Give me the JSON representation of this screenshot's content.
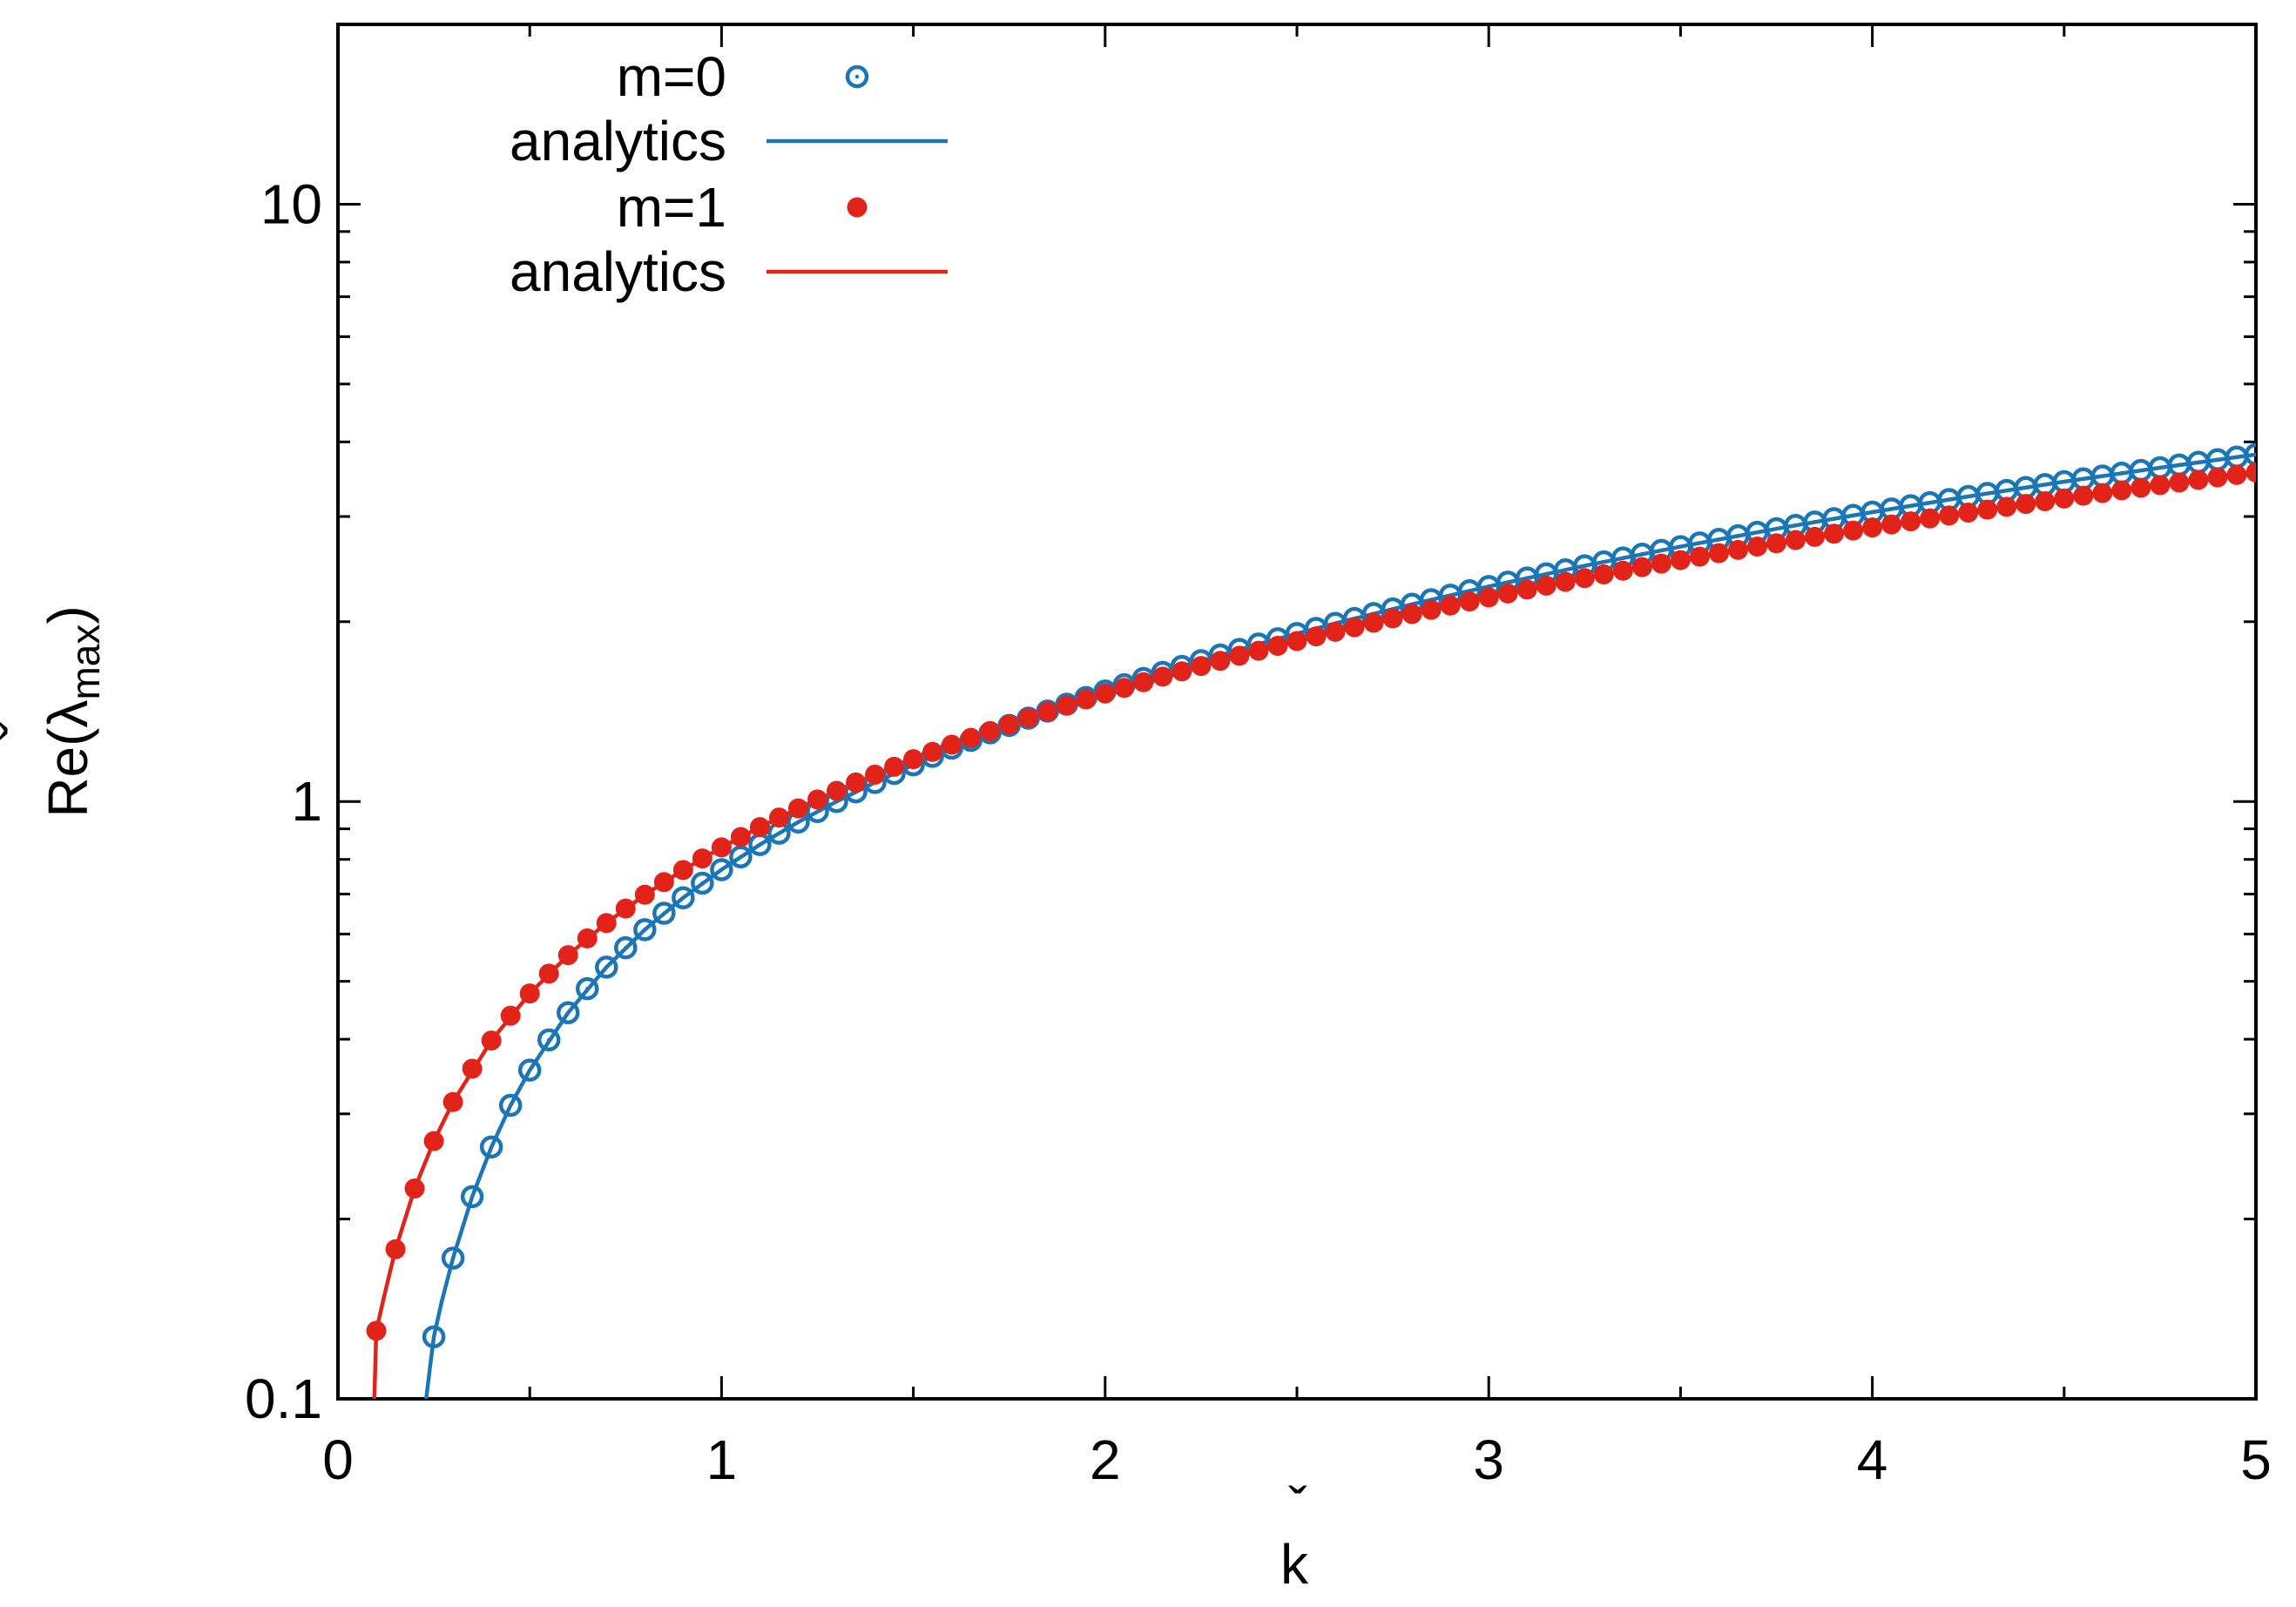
{
  "colors": {
    "m0": "#1a76b6",
    "m1": "#e2231a",
    "axis": "#000000",
    "background": "#ffffff"
  },
  "chart_data": {
    "type": "scatter",
    "title": "",
    "xlabel": "k",
    "xlabel_accent": "ˇ",
    "ylabel": {
      "prefix": "Re(",
      "symbol": "λ",
      "symbol_accent": "ˇ",
      "subscript": "max",
      "suffix": ")"
    },
    "xlim": [
      0,
      5
    ],
    "ylim": [
      0.1,
      20
    ],
    "yscale": "log",
    "grid": false,
    "legend_position": "top-left",
    "x_ticks": [
      {
        "value": 0,
        "label": "0"
      },
      {
        "value": 1,
        "label": "1"
      },
      {
        "value": 2,
        "label": "2"
      },
      {
        "value": 3,
        "label": "3"
      },
      {
        "value": 4,
        "label": "4"
      },
      {
        "value": 5,
        "label": "5"
      }
    ],
    "y_ticks": [
      {
        "value": 0.1,
        "label": "0.1"
      },
      {
        "value": 1,
        "label": "1"
      },
      {
        "value": 10,
        "label": "10"
      }
    ],
    "x_minor_ticks": [
      0.5,
      1.5,
      2.5,
      3.5,
      4.5
    ],
    "y_minor_ticks": [
      0.2,
      0.3,
      0.4,
      0.5,
      0.6,
      0.7,
      0.8,
      0.9,
      2,
      3,
      4,
      5,
      6,
      7,
      8,
      9,
      20
    ],
    "series": [
      {
        "name": "m=0",
        "kind": "points",
        "marker": "open-circle",
        "color": "#1a76b6",
        "x": [
          0.25,
          0.3,
          0.35,
          0.4,
          0.45,
          0.5,
          0.55,
          0.6,
          0.65,
          0.7,
          0.75,
          0.8,
          0.85,
          0.9,
          0.95,
          1.0,
          1.05,
          1.1,
          1.15,
          1.2,
          1.25,
          1.3,
          1.35,
          1.4,
          1.45,
          1.5,
          1.55,
          1.6,
          1.65,
          1.7,
          1.75,
          1.8,
          1.85,
          1.9,
          1.95,
          2.0,
          2.05,
          2.1,
          2.15,
          2.2,
          2.25,
          2.3,
          2.35,
          2.4,
          2.45,
          2.5,
          2.55,
          2.6,
          2.65,
          2.7,
          2.75,
          2.8,
          2.85,
          2.9,
          2.95,
          3.0,
          3.05,
          3.1,
          3.15,
          3.2,
          3.25,
          3.3,
          3.35,
          3.4,
          3.45,
          3.5,
          3.55,
          3.6,
          3.65,
          3.7,
          3.75,
          3.8,
          3.85,
          3.9,
          3.95,
          4.0,
          4.05,
          4.1,
          4.15,
          4.2,
          4.25,
          4.3,
          4.35,
          4.4,
          4.45,
          4.5,
          4.55,
          4.6,
          4.65,
          4.7,
          4.75,
          4.8,
          4.85,
          4.9,
          4.95,
          5.0
        ],
        "y": [
          0.127,
          0.172,
          0.218,
          0.264,
          0.31,
          0.355,
          0.399,
          0.443,
          0.486,
          0.528,
          0.569,
          0.61,
          0.65,
          0.69,
          0.73,
          0.769,
          0.808,
          0.847,
          0.885,
          0.924,
          0.962,
          1.0,
          1.038,
          1.076,
          1.114,
          1.152,
          1.19,
          1.228,
          1.266,
          1.303,
          1.341,
          1.379,
          1.417,
          1.455,
          1.493,
          1.531,
          1.569,
          1.607,
          1.645,
          1.683,
          1.721,
          1.759,
          1.797,
          1.835,
          1.873,
          1.911,
          1.949,
          1.987,
          2.025,
          2.063,
          2.101,
          2.139,
          2.177,
          2.215,
          2.253,
          2.291,
          2.329,
          2.367,
          2.405,
          2.443,
          2.481,
          2.519,
          2.557,
          2.595,
          2.633,
          2.671,
          2.709,
          2.747,
          2.785,
          2.823,
          2.861,
          2.899,
          2.937,
          2.975,
          3.013,
          3.051,
          3.089,
          3.127,
          3.165,
          3.203,
          3.241,
          3.279,
          3.317,
          3.355,
          3.393,
          3.431,
          3.469,
          3.507,
          3.545,
          3.583,
          3.621,
          3.659,
          3.697,
          3.735,
          3.773,
          3.811
        ]
      },
      {
        "name": "analytics",
        "kind": "line",
        "color": "#1a76b6",
        "x": [
          0.23,
          0.24,
          0.25,
          0.27,
          0.3,
          0.35,
          0.4,
          0.45,
          0.5,
          0.6,
          0.7,
          0.8,
          0.9,
          1.0,
          1.1,
          1.2,
          1.3,
          1.4,
          1.5,
          1.6,
          1.7,
          1.8,
          1.9,
          2.0,
          2.2,
          2.4,
          2.6,
          2.8,
          3.0,
          3.25,
          3.5,
          3.75,
          4.0,
          4.25,
          4.5,
          4.75,
          5.0
        ],
        "y": [
          0.1,
          0.113,
          0.127,
          0.145,
          0.172,
          0.218,
          0.264,
          0.31,
          0.355,
          0.443,
          0.528,
          0.61,
          0.69,
          0.769,
          0.847,
          0.924,
          1.0,
          1.076,
          1.152,
          1.228,
          1.303,
          1.379,
          1.455,
          1.531,
          1.683,
          1.835,
          1.987,
          2.139,
          2.291,
          2.481,
          2.671,
          2.861,
          3.051,
          3.241,
          3.431,
          3.621,
          3.811
        ]
      },
      {
        "name": "m=1",
        "kind": "points",
        "marker": "filled-circle",
        "color": "#e2231a",
        "x": [
          0.1,
          0.15,
          0.2,
          0.25,
          0.3,
          0.35,
          0.4,
          0.45,
          0.5,
          0.55,
          0.6,
          0.65,
          0.7,
          0.75,
          0.8,
          0.85,
          0.9,
          0.95,
          1.0,
          1.05,
          1.1,
          1.15,
          1.2,
          1.25,
          1.3,
          1.35,
          1.4,
          1.45,
          1.5,
          1.55,
          1.6,
          1.65,
          1.7,
          1.75,
          1.8,
          1.85,
          1.9,
          1.95,
          2.0,
          2.05,
          2.1,
          2.15,
          2.2,
          2.25,
          2.3,
          2.35,
          2.4,
          2.45,
          2.5,
          2.55,
          2.6,
          2.65,
          2.7,
          2.75,
          2.8,
          2.85,
          2.9,
          2.95,
          3.0,
          3.05,
          3.1,
          3.15,
          3.2,
          3.25,
          3.3,
          3.35,
          3.4,
          3.45,
          3.5,
          3.55,
          3.6,
          3.65,
          3.7,
          3.75,
          3.8,
          3.85,
          3.9,
          3.95,
          4.0,
          4.05,
          4.1,
          4.15,
          4.2,
          4.25,
          4.3,
          4.35,
          4.4,
          4.45,
          4.5,
          4.55,
          4.6,
          4.65,
          4.7,
          4.75,
          4.8,
          4.85,
          4.9,
          4.95,
          5.0
        ],
        "y": [
          0.13,
          0.178,
          0.225,
          0.27,
          0.314,
          0.357,
          0.398,
          0.438,
          0.477,
          0.515,
          0.553,
          0.59,
          0.626,
          0.662,
          0.698,
          0.733,
          0.768,
          0.803,
          0.838,
          0.872,
          0.906,
          0.94,
          0.974,
          1.008,
          1.042,
          1.076,
          1.109,
          1.143,
          1.177,
          1.211,
          1.245,
          1.278,
          1.312,
          1.346,
          1.38,
          1.414,
          1.448,
          1.482,
          1.516,
          1.55,
          1.584,
          1.618,
          1.652,
          1.686,
          1.72,
          1.754,
          1.788,
          1.822,
          1.856,
          1.89,
          1.924,
          1.958,
          1.992,
          2.026,
          2.06,
          2.094,
          2.128,
          2.162,
          2.196,
          2.23,
          2.264,
          2.298,
          2.332,
          2.366,
          2.4,
          2.434,
          2.468,
          2.502,
          2.536,
          2.57,
          2.604,
          2.638,
          2.672,
          2.706,
          2.74,
          2.774,
          2.808,
          2.842,
          2.876,
          2.91,
          2.944,
          2.978,
          3.012,
          3.046,
          3.08,
          3.114,
          3.148,
          3.182,
          3.216,
          3.25,
          3.284,
          3.318,
          3.352,
          3.386,
          3.42,
          3.454,
          3.488,
          3.522,
          3.556
        ]
      },
      {
        "name": "analytics",
        "kind": "line",
        "color": "#e2231a",
        "x": [
          0.095,
          0.1,
          0.12,
          0.15,
          0.2,
          0.25,
          0.3,
          0.4,
          0.5,
          0.6,
          0.7,
          0.8,
          0.9,
          1.0,
          1.1,
          1.2,
          1.3,
          1.4,
          1.5,
          1.6,
          1.7,
          1.8,
          1.9,
          2.0,
          2.2,
          2.4,
          2.6,
          2.8,
          3.0,
          3.25,
          3.5,
          3.75,
          4.0,
          4.25,
          4.5,
          4.75,
          5.0
        ],
        "y": [
          0.1,
          0.13,
          0.148,
          0.178,
          0.225,
          0.27,
          0.314,
          0.398,
          0.477,
          0.553,
          0.626,
          0.698,
          0.768,
          0.838,
          0.906,
          0.974,
          1.042,
          1.109,
          1.177,
          1.245,
          1.312,
          1.38,
          1.448,
          1.516,
          1.652,
          1.788,
          1.924,
          2.06,
          2.196,
          2.366,
          2.536,
          2.706,
          2.876,
          3.046,
          3.216,
          3.386,
          3.556
        ]
      }
    ]
  }
}
